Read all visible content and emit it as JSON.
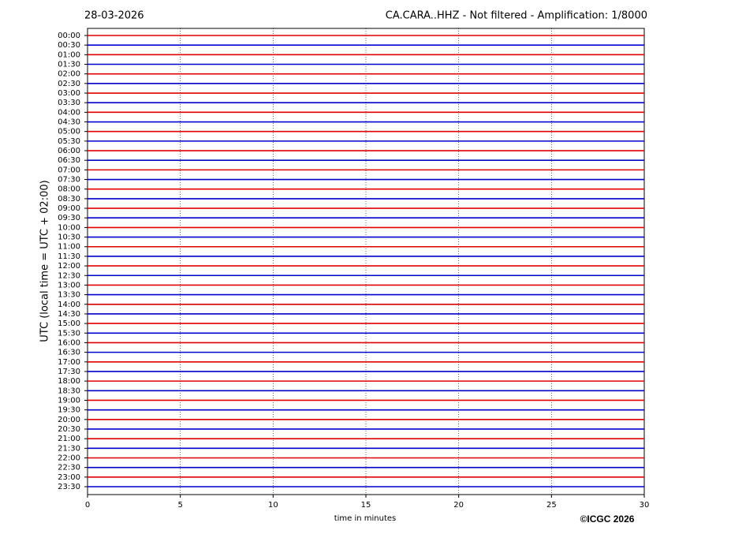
{
  "chart_data": {
    "type": "helicorder",
    "date": "28-03-2026",
    "title": "CA.CARA..HHZ - Not filtered - Amplification: 1/8000",
    "ylabel": "UTC (local time = UTC + 02:00)",
    "xlabel": "time in minutes",
    "credit": "©ICGC 2026",
    "rows": [
      "00:00",
      "00:30",
      "01:00",
      "01:30",
      "02:00",
      "02:30",
      "03:00",
      "03:30",
      "04:00",
      "04:30",
      "05:00",
      "05:30",
      "06:00",
      "06:30",
      "07:00",
      "07:30",
      "08:00",
      "08:30",
      "09:00",
      "09:30",
      "10:00",
      "10:30",
      "11:00",
      "11:30",
      "12:00",
      "12:30",
      "13:00",
      "13:30",
      "14:00",
      "14:30",
      "15:00",
      "15:30",
      "16:00",
      "16:30",
      "17:00",
      "17:30",
      "18:00",
      "18:30",
      "19:00",
      "19:30",
      "20:00",
      "20:30",
      "21:00",
      "21:30",
      "22:00",
      "22:30",
      "23:00",
      "23:30"
    ],
    "colors": [
      "#e00000",
      "#0000cc"
    ],
    "xlim": [
      0,
      30
    ],
    "xticks": [
      0,
      5,
      10,
      15,
      20,
      25,
      30
    ],
    "grid": true
  }
}
